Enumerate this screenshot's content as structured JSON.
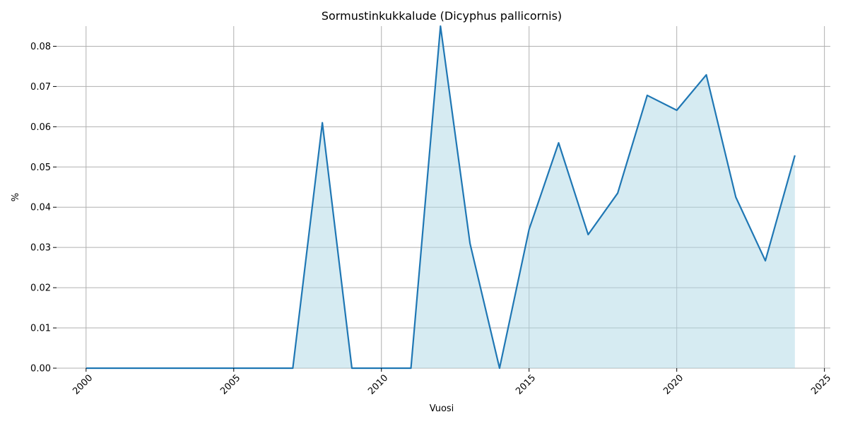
{
  "chart_data": {
    "type": "area",
    "title": "Sormustinkukkalude (Dicyphus pallicornis)",
    "xlabel": "Vuosi",
    "ylabel": "%",
    "xlim": [
      1999,
      2025.2
    ],
    "ylim": [
      0,
      0.085
    ],
    "x_ticks": [
      2000,
      2005,
      2010,
      2015,
      2020,
      2025
    ],
    "y_ticks": [
      0.0,
      0.01,
      0.02,
      0.03,
      0.04,
      0.05,
      0.06,
      0.07,
      0.08
    ],
    "y_tick_labels": [
      "0.00",
      "0.01",
      "0.02",
      "0.03",
      "0.04",
      "0.05",
      "0.06",
      "0.07",
      "0.08"
    ],
    "grid": true,
    "line_color": "#1f77b4",
    "fill_color": "#add8e6",
    "series": [
      {
        "x": [
          2000,
          2001,
          2002,
          2003,
          2004,
          2005,
          2006,
          2007,
          2008,
          2009,
          2010,
          2011,
          2012,
          2013,
          2014,
          2015,
          2016,
          2017,
          2018,
          2019,
          2020,
          2021,
          2022,
          2023,
          2024
        ],
        "values": [
          0,
          0,
          0,
          0,
          0,
          0,
          0,
          0,
          0.061,
          0,
          0,
          0,
          0.085,
          0.031,
          0,
          0.0345,
          0.056,
          0.0332,
          0.0435,
          0.0678,
          0.0641,
          0.0729,
          0.0425,
          0.0267,
          0.0529
        ]
      }
    ]
  }
}
